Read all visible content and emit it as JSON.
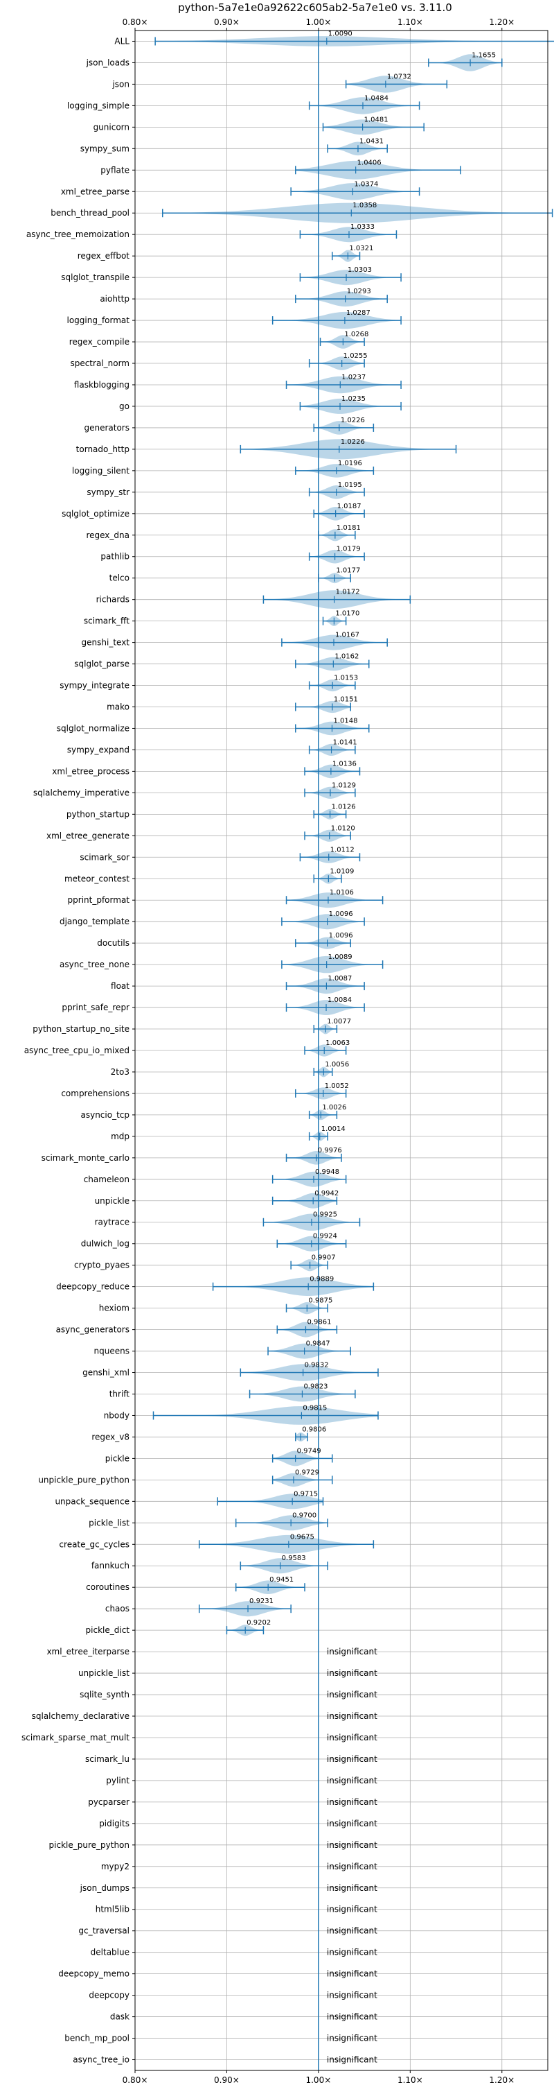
{
  "chart_data": {
    "type": "violin",
    "title": "python-5a7e1e0a92622c605ab2-5a7e1e0 vs. 3.11.0",
    "xlim": [
      0.8,
      1.25
    ],
    "xticks": [
      0.8,
      0.9,
      1.0,
      1.1,
      1.2
    ],
    "xtick_labels": [
      "0.80×",
      "0.90×",
      "1.00×",
      "1.10×",
      "1.20×"
    ],
    "reference": 1.0,
    "grid": true,
    "insignificant_label": "insignificant",
    "benchmarks": [
      {
        "name": "ALL",
        "median": 1.009,
        "label": "1.0090",
        "min": 0.822,
        "max": 1.258,
        "spread": 0.02
      },
      {
        "name": "json_loads",
        "median": 1.1655,
        "label": "1.1655",
        "min": 1.12,
        "max": 1.2,
        "spread": 0.06
      },
      {
        "name": "json",
        "median": 1.0732,
        "label": "1.0732",
        "min": 1.03,
        "max": 1.14,
        "spread": 0.06
      },
      {
        "name": "logging_simple",
        "median": 1.0484,
        "label": "1.0484",
        "min": 0.99,
        "max": 1.11,
        "spread": 0.06
      },
      {
        "name": "gunicorn",
        "median": 1.0481,
        "label": "1.0481",
        "min": 1.005,
        "max": 1.115,
        "spread": 0.05
      },
      {
        "name": "sympy_sum",
        "median": 1.0431,
        "label": "1.0431",
        "min": 1.01,
        "max": 1.075,
        "spread": 0.04
      },
      {
        "name": "pyflate",
        "median": 1.0406,
        "label": "1.0406",
        "min": 0.975,
        "max": 1.155,
        "spread": 0.07
      },
      {
        "name": "xml_etree_parse",
        "median": 1.0374,
        "label": "1.0374",
        "min": 0.97,
        "max": 1.11,
        "spread": 0.06
      },
      {
        "name": "bench_thread_pool",
        "median": 1.0358,
        "label": "1.0358",
        "min": 0.83,
        "max": 1.255,
        "spread": 0.08
      },
      {
        "name": "async_tree_memoization",
        "median": 1.0333,
        "label": "1.0333",
        "min": 0.98,
        "max": 1.085,
        "spread": 0.05
      },
      {
        "name": "regex_effbot",
        "median": 1.0321,
        "label": "1.0321",
        "min": 1.015,
        "max": 1.045,
        "spread": 0.03
      },
      {
        "name": "sqlglot_transpile",
        "median": 1.0303,
        "label": "1.0303",
        "min": 0.98,
        "max": 1.09,
        "spread": 0.05
      },
      {
        "name": "aiohttp",
        "median": 1.0293,
        "label": "1.0293",
        "min": 0.975,
        "max": 1.075,
        "spread": 0.05
      },
      {
        "name": "logging_format",
        "median": 1.0287,
        "label": "1.0287",
        "min": 0.95,
        "max": 1.09,
        "spread": 0.06
      },
      {
        "name": "regex_compile",
        "median": 1.0268,
        "label": "1.0268",
        "min": 1.002,
        "max": 1.05,
        "spread": 0.04
      },
      {
        "name": "spectral_norm",
        "median": 1.0255,
        "label": "1.0255",
        "min": 0.99,
        "max": 1.05,
        "spread": 0.04
      },
      {
        "name": "flaskblogging",
        "median": 1.0237,
        "label": "1.0237",
        "min": 0.965,
        "max": 1.09,
        "spread": 0.06
      },
      {
        "name": "go",
        "median": 1.0235,
        "label": "1.0235",
        "min": 0.98,
        "max": 1.09,
        "spread": 0.05
      },
      {
        "name": "generators",
        "median": 1.0226,
        "label": "1.0226",
        "min": 0.995,
        "max": 1.06,
        "spread": 0.04
      },
      {
        "name": "tornado_http",
        "median": 1.0226,
        "label": "1.0226",
        "min": 0.915,
        "max": 1.15,
        "spread": 0.08
      },
      {
        "name": "logging_silent",
        "median": 1.0196,
        "label": "1.0196",
        "min": 0.975,
        "max": 1.06,
        "spread": 0.04
      },
      {
        "name": "sympy_str",
        "median": 1.0195,
        "label": "1.0195",
        "min": 0.99,
        "max": 1.05,
        "spread": 0.04
      },
      {
        "name": "sqlglot_optimize",
        "median": 1.0187,
        "label": "1.0187",
        "min": 0.995,
        "max": 1.05,
        "spread": 0.04
      },
      {
        "name": "regex_dna",
        "median": 1.0181,
        "label": "1.0181",
        "min": 1.0,
        "max": 1.04,
        "spread": 0.03
      },
      {
        "name": "pathlib",
        "median": 1.0179,
        "label": "1.0179",
        "min": 0.99,
        "max": 1.05,
        "spread": 0.04
      },
      {
        "name": "telco",
        "median": 1.0177,
        "label": "1.0177",
        "min": 1.0,
        "max": 1.035,
        "spread": 0.02
      },
      {
        "name": "richards",
        "median": 1.0172,
        "label": "1.0172",
        "min": 0.94,
        "max": 1.1,
        "spread": 0.07
      },
      {
        "name": "scimark_fft",
        "median": 1.017,
        "label": "1.0170",
        "min": 1.005,
        "max": 1.03,
        "spread": 0.02
      },
      {
        "name": "genshi_text",
        "median": 1.0167,
        "label": "1.0167",
        "min": 0.96,
        "max": 1.075,
        "spread": 0.05
      },
      {
        "name": "sqlglot_parse",
        "median": 1.0162,
        "label": "1.0162",
        "min": 0.975,
        "max": 1.055,
        "spread": 0.04
      },
      {
        "name": "sympy_integrate",
        "median": 1.0153,
        "label": "1.0153",
        "min": 0.99,
        "max": 1.04,
        "spread": 0.03
      },
      {
        "name": "mako",
        "median": 1.0151,
        "label": "1.0151",
        "min": 0.975,
        "max": 1.035,
        "spread": 0.03
      },
      {
        "name": "sqlglot_normalize",
        "median": 1.0148,
        "label": "1.0148",
        "min": 0.975,
        "max": 1.055,
        "spread": 0.04
      },
      {
        "name": "sympy_expand",
        "median": 1.0141,
        "label": "1.0141",
        "min": 0.99,
        "max": 1.04,
        "spread": 0.03
      },
      {
        "name": "xml_etree_process",
        "median": 1.0136,
        "label": "1.0136",
        "min": 0.985,
        "max": 1.045,
        "spread": 0.04
      },
      {
        "name": "sqlalchemy_imperative",
        "median": 1.0129,
        "label": "1.0129",
        "min": 0.985,
        "max": 1.04,
        "spread": 0.03
      },
      {
        "name": "python_startup",
        "median": 1.0126,
        "label": "1.0126",
        "min": 0.995,
        "max": 1.03,
        "spread": 0.02
      },
      {
        "name": "xml_etree_generate",
        "median": 1.012,
        "label": "1.0120",
        "min": 0.985,
        "max": 1.035,
        "spread": 0.03
      },
      {
        "name": "scimark_sor",
        "median": 1.0112,
        "label": "1.0112",
        "min": 0.98,
        "max": 1.045,
        "spread": 0.03
      },
      {
        "name": "meteor_contest",
        "median": 1.0109,
        "label": "1.0109",
        "min": 0.995,
        "max": 1.025,
        "spread": 0.02
      },
      {
        "name": "pprint_pformat",
        "median": 1.0106,
        "label": "1.0106",
        "min": 0.965,
        "max": 1.07,
        "spread": 0.05
      },
      {
        "name": "django_template",
        "median": 1.0096,
        "label": "1.0096",
        "min": 0.96,
        "max": 1.05,
        "spread": 0.05
      },
      {
        "name": "docutils",
        "median": 1.0096,
        "label": "1.0096",
        "min": 0.975,
        "max": 1.035,
        "spread": 0.03
      },
      {
        "name": "async_tree_none",
        "median": 1.0089,
        "label": "1.0089",
        "min": 0.96,
        "max": 1.07,
        "spread": 0.06
      },
      {
        "name": "float",
        "median": 1.0087,
        "label": "1.0087",
        "min": 0.965,
        "max": 1.05,
        "spread": 0.05
      },
      {
        "name": "pprint_safe_repr",
        "median": 1.0084,
        "label": "1.0084",
        "min": 0.965,
        "max": 1.05,
        "spread": 0.05
      },
      {
        "name": "python_startup_no_site",
        "median": 1.0077,
        "label": "1.0077",
        "min": 0.995,
        "max": 1.02,
        "spread": 0.02
      },
      {
        "name": "async_tree_cpu_io_mixed",
        "median": 1.0063,
        "label": "1.0063",
        "min": 0.985,
        "max": 1.03,
        "spread": 0.03
      },
      {
        "name": "2to3",
        "median": 1.0056,
        "label": "1.0056",
        "min": 0.995,
        "max": 1.015,
        "spread": 0.02
      },
      {
        "name": "comprehensions",
        "median": 1.0052,
        "label": "1.0052",
        "min": 0.975,
        "max": 1.03,
        "spread": 0.03
      },
      {
        "name": "asyncio_tcp",
        "median": 1.0026,
        "label": "1.0026",
        "min": 0.99,
        "max": 1.02,
        "spread": 0.02
      },
      {
        "name": "mdp",
        "median": 1.0014,
        "label": "1.0014",
        "min": 0.99,
        "max": 1.01,
        "spread": 0.015
      },
      {
        "name": "scimark_monte_carlo",
        "median": 0.9976,
        "label": "0.9976",
        "min": 0.965,
        "max": 1.025,
        "spread": 0.04
      },
      {
        "name": "chameleon",
        "median": 0.9948,
        "label": "0.9948",
        "min": 0.95,
        "max": 1.03,
        "spread": 0.05
      },
      {
        "name": "unpickle",
        "median": 0.9942,
        "label": "0.9942",
        "min": 0.95,
        "max": 1.02,
        "spread": 0.05
      },
      {
        "name": "raytrace",
        "median": 0.9925,
        "label": "0.9925",
        "min": 0.94,
        "max": 1.045,
        "spread": 0.06
      },
      {
        "name": "dulwich_log",
        "median": 0.9924,
        "label": "0.9924",
        "min": 0.955,
        "max": 1.03,
        "spread": 0.05
      },
      {
        "name": "crypto_pyaes",
        "median": 0.9907,
        "label": "0.9907",
        "min": 0.97,
        "max": 1.01,
        "spread": 0.03
      },
      {
        "name": "deepcopy_reduce",
        "median": 0.9889,
        "label": "0.9889",
        "min": 0.885,
        "max": 1.06,
        "spread": 0.07
      },
      {
        "name": "hexiom",
        "median": 0.9875,
        "label": "0.9875",
        "min": 0.965,
        "max": 1.01,
        "spread": 0.03
      },
      {
        "name": "async_generators",
        "median": 0.9861,
        "label": "0.9861",
        "min": 0.955,
        "max": 1.02,
        "spread": 0.05
      },
      {
        "name": "nqueens",
        "median": 0.9847,
        "label": "0.9847",
        "min": 0.945,
        "max": 1.035,
        "spread": 0.05
      },
      {
        "name": "genshi_xml",
        "median": 0.9832,
        "label": "0.9832",
        "min": 0.915,
        "max": 1.065,
        "spread": 0.06
      },
      {
        "name": "thrift",
        "median": 0.9823,
        "label": "0.9823",
        "min": 0.925,
        "max": 1.04,
        "spread": 0.05
      },
      {
        "name": "nbody",
        "median": 0.9815,
        "label": "0.9815",
        "min": 0.82,
        "max": 1.065,
        "spread": 0.07
      },
      {
        "name": "regex_v8",
        "median": 0.9806,
        "label": "0.9806",
        "min": 0.975,
        "max": 0.988,
        "spread": 0.012
      },
      {
        "name": "pickle",
        "median": 0.9749,
        "label": "0.9749",
        "min": 0.95,
        "max": 1.015,
        "spread": 0.05
      },
      {
        "name": "unpickle_pure_python",
        "median": 0.9729,
        "label": "0.9729",
        "min": 0.95,
        "max": 1.015,
        "spread": 0.04
      },
      {
        "name": "unpack_sequence",
        "median": 0.9715,
        "label": "0.9715",
        "min": 0.89,
        "max": 1.005,
        "spread": 0.05
      },
      {
        "name": "pickle_list",
        "median": 0.97,
        "label": "0.9700",
        "min": 0.91,
        "max": 1.01,
        "spread": 0.05
      },
      {
        "name": "create_gc_cycles",
        "median": 0.9675,
        "label": "0.9675",
        "min": 0.87,
        "max": 1.06,
        "spread": 0.07
      },
      {
        "name": "fannkuch",
        "median": 0.9583,
        "label": "0.9583",
        "min": 0.915,
        "max": 1.01,
        "spread": 0.05
      },
      {
        "name": "coroutines",
        "median": 0.9451,
        "label": "0.9451",
        "min": 0.91,
        "max": 0.985,
        "spread": 0.04
      },
      {
        "name": "chaos",
        "median": 0.9231,
        "label": "0.9231",
        "min": 0.87,
        "max": 0.97,
        "spread": 0.05
      },
      {
        "name": "pickle_dict",
        "median": 0.9202,
        "label": "0.9202",
        "min": 0.9,
        "max": 0.94,
        "spread": 0.025
      },
      {
        "name": "xml_etree_iterparse",
        "insignificant": true
      },
      {
        "name": "unpickle_list",
        "insignificant": true
      },
      {
        "name": "sqlite_synth",
        "insignificant": true
      },
      {
        "name": "sqlalchemy_declarative",
        "insignificant": true
      },
      {
        "name": "scimark_sparse_mat_mult",
        "insignificant": true
      },
      {
        "name": "scimark_lu",
        "insignificant": true
      },
      {
        "name": "pylint",
        "insignificant": true
      },
      {
        "name": "pycparser",
        "insignificant": true
      },
      {
        "name": "pidigits",
        "insignificant": true
      },
      {
        "name": "pickle_pure_python",
        "insignificant": true
      },
      {
        "name": "mypy2",
        "insignificant": true
      },
      {
        "name": "json_dumps",
        "insignificant": true
      },
      {
        "name": "html5lib",
        "insignificant": true
      },
      {
        "name": "gc_traversal",
        "insignificant": true
      },
      {
        "name": "deltablue",
        "insignificant": true
      },
      {
        "name": "deepcopy_memo",
        "insignificant": true
      },
      {
        "name": "deepcopy",
        "insignificant": true
      },
      {
        "name": "dask",
        "insignificant": true
      },
      {
        "name": "bench_mp_pool",
        "insignificant": true
      },
      {
        "name": "async_tree_io",
        "insignificant": true
      }
    ]
  }
}
